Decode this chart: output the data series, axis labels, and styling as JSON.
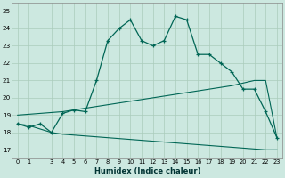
{
  "xlabel": "Humidex (Indice chaleur)",
  "bg_color": "#cce8e0",
  "grid_color": "#aaccbb",
  "line_color": "#006655",
  "xlim": [
    -0.5,
    23.5
  ],
  "ylim": [
    16.5,
    25.5
  ],
  "xticks": [
    0,
    1,
    3,
    4,
    5,
    6,
    7,
    8,
    9,
    10,
    11,
    12,
    13,
    14,
    15,
    16,
    17,
    18,
    19,
    20,
    21,
    22,
    23
  ],
  "yticks": [
    17,
    18,
    19,
    20,
    21,
    22,
    23,
    24,
    25
  ],
  "hours": [
    0,
    1,
    2,
    3,
    4,
    5,
    6,
    7,
    8,
    9,
    10,
    11,
    12,
    13,
    14,
    15,
    16,
    17,
    18,
    19,
    20,
    21,
    22,
    23
  ],
  "main_line": [
    18.5,
    18.3,
    18.5,
    18.0,
    19.1,
    19.3,
    19.2,
    21.0,
    23.3,
    24.0,
    24.5,
    23.3,
    23.0,
    23.3,
    24.7,
    24.5,
    22.5,
    22.5,
    22.0,
    21.5,
    20.5,
    20.5,
    19.2,
    17.7
  ],
  "upper_line": [
    19.0,
    19.05,
    19.1,
    19.15,
    19.2,
    19.3,
    19.4,
    19.5,
    19.6,
    19.7,
    19.8,
    19.9,
    20.0,
    20.1,
    20.2,
    20.3,
    20.4,
    20.5,
    20.6,
    20.7,
    20.85,
    21.0,
    21.0,
    17.7
  ],
  "lower_line": [
    18.5,
    18.4,
    18.2,
    18.0,
    17.9,
    17.85,
    17.8,
    17.75,
    17.7,
    17.65,
    17.6,
    17.55,
    17.5,
    17.45,
    17.4,
    17.35,
    17.3,
    17.25,
    17.2,
    17.15,
    17.1,
    17.05,
    17.0,
    17.0
  ]
}
